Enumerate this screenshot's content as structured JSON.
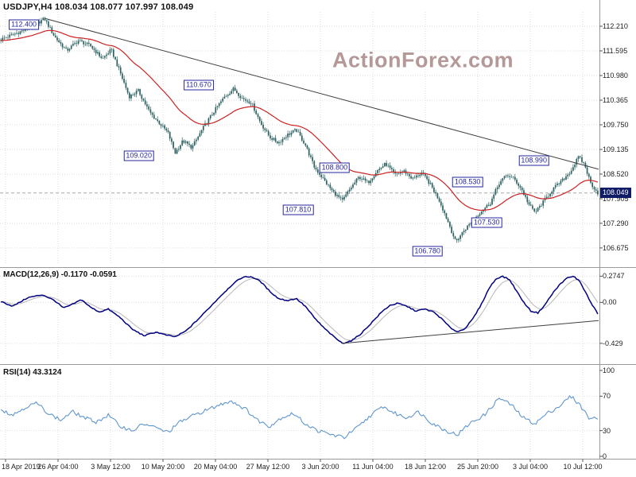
{
  "header": {
    "title": "USDJPY,H4 108.034 108.077 107.997 108.049"
  },
  "watermark": {
    "text": "ActionForex.com"
  },
  "colors": {
    "candle": "#2c6060",
    "ma_line": "#cc2222",
    "macd_line": "#000080",
    "macd_signal": "#b8b8b8",
    "rsi_line": "#5f97cf",
    "grid": "#dedede",
    "trendline": "#3f3f3f",
    "annotation": "#26269c",
    "price_marker_bg": "#101c66",
    "watermark_color": "#b29494"
  },
  "x_axis": {
    "tick_labels": [
      "18 Apr 2019",
      "26 Apr 04:00",
      "3 May 12:00",
      "10 May 20:00",
      "20 May 04:00",
      "27 May 12:00",
      "3 Jun 20:00",
      "11 Jun 04:00",
      "18 Jun 12:00",
      "25 Jun 20:00",
      "3 Jul 04:00",
      "10 Jul 12:00"
    ]
  },
  "chart_data": [
    {
      "type": "candlestick",
      "symbol": "USDJPY",
      "timeframe": "H4",
      "ohlc": {
        "open": 108.034,
        "high": 108.077,
        "low": 107.997,
        "close": 108.049
      },
      "current_price": "108.049",
      "y_axis_labels": [
        "112.210",
        "111.595",
        "110.980",
        "110.365",
        "109.750",
        "109.135",
        "108.520",
        "107.905",
        "107.290",
        "106.675"
      ],
      "y_range": [
        106.277,
        112.567
      ],
      "candle_count": 340,
      "ma_period": 40,
      "price_keypoints": [
        [
          0,
          111.88
        ],
        [
          0.02,
          112.0
        ],
        [
          0.05,
          112.18
        ],
        [
          0.073,
          112.4
        ],
        [
          0.09,
          111.95
        ],
        [
          0.11,
          111.6
        ],
        [
          0.13,
          111.85
        ],
        [
          0.15,
          111.72
        ],
        [
          0.17,
          111.4
        ],
        [
          0.185,
          111.62
        ],
        [
          0.2,
          111.05
        ],
        [
          0.215,
          110.45
        ],
        [
          0.23,
          110.6
        ],
        [
          0.25,
          110.05
        ],
        [
          0.265,
          109.8
        ],
        [
          0.28,
          109.55
        ],
        [
          0.292,
          109.05
        ],
        [
          0.305,
          109.35
        ],
        [
          0.32,
          109.18
        ],
        [
          0.34,
          109.7
        ],
        [
          0.36,
          110.15
        ],
        [
          0.375,
          110.45
        ],
        [
          0.39,
          110.65
        ],
        [
          0.405,
          110.4
        ],
        [
          0.42,
          110.3
        ],
        [
          0.435,
          109.8
        ],
        [
          0.45,
          109.45
        ],
        [
          0.465,
          109.3
        ],
        [
          0.48,
          109.5
        ],
        [
          0.495,
          109.62
        ],
        [
          0.51,
          109.25
        ],
        [
          0.525,
          108.7
        ],
        [
          0.54,
          108.4
        ],
        [
          0.555,
          108.1
        ],
        [
          0.572,
          107.85
        ],
        [
          0.585,
          108.15
        ],
        [
          0.6,
          108.45
        ],
        [
          0.615,
          108.3
        ],
        [
          0.63,
          108.6
        ],
        [
          0.645,
          108.78
        ],
        [
          0.66,
          108.5
        ],
        [
          0.675,
          108.6
        ],
        [
          0.69,
          108.4
        ],
        [
          0.705,
          108.55
        ],
        [
          0.72,
          108.25
        ],
        [
          0.735,
          107.85
        ],
        [
          0.75,
          107.3
        ],
        [
          0.762,
          106.82
        ],
        [
          0.775,
          107.1
        ],
        [
          0.79,
          107.35
        ],
        [
          0.805,
          107.6
        ],
        [
          0.82,
          107.8
        ],
        [
          0.835,
          108.3
        ],
        [
          0.848,
          108.5
        ],
        [
          0.86,
          108.4
        ],
        [
          0.872,
          108.15
        ],
        [
          0.885,
          107.75
        ],
        [
          0.895,
          107.56
        ],
        [
          0.91,
          107.85
        ],
        [
          0.925,
          108.15
        ],
        [
          0.94,
          108.35
        ],
        [
          0.955,
          108.6
        ],
        [
          0.968,
          108.95
        ],
        [
          0.978,
          108.75
        ],
        [
          0.988,
          108.3
        ],
        [
          1,
          108.05
        ]
      ],
      "trendline": [
        [
          0.076,
          112.4
        ],
        [
          1.0,
          108.64
        ]
      ],
      "annotations": [
        {
          "label": "112.400",
          "t": 0.04,
          "p": 112.25
        },
        {
          "label": "110.670",
          "t": 0.332,
          "p": 110.74
        },
        {
          "label": "109.020",
          "t": 0.232,
          "p": 108.97
        },
        {
          "label": "108.800",
          "t": 0.559,
          "p": 108.67
        },
        {
          "label": "107.810",
          "t": 0.498,
          "p": 107.62
        },
        {
          "label": "108.530",
          "t": 0.781,
          "p": 108.33
        },
        {
          "label": "107.530",
          "t": 0.813,
          "p": 107.3
        },
        {
          "label": "106.780",
          "t": 0.714,
          "p": 106.6
        },
        {
          "label": "108.990",
          "t": 0.892,
          "p": 108.85
        }
      ]
    },
    {
      "type": "line",
      "name": "MACD",
      "label": "MACD(12,26,9) -0.1170 -0.0591",
      "values_display": [
        "-0.1170",
        "-0.0591"
      ],
      "y_axis_labels": [
        "0.2747",
        "0.00",
        "-0.429"
      ],
      "y_axis_values": [
        0.2747,
        0,
        -0.429
      ],
      "y_range": [
        -0.605,
        0.345
      ],
      "keypoints": [
        [
          0,
          0.01
        ],
        [
          0.02,
          -0.04
        ],
        [
          0.045,
          0.05
        ],
        [
          0.07,
          0.08
        ],
        [
          0.09,
          0.02
        ],
        [
          0.105,
          -0.06
        ],
        [
          0.12,
          -0.02
        ],
        [
          0.135,
          0.03
        ],
        [
          0.15,
          -0.05
        ],
        [
          0.165,
          -0.1
        ],
        [
          0.18,
          -0.07
        ],
        [
          0.2,
          -0.16
        ],
        [
          0.22,
          -0.28
        ],
        [
          0.24,
          -0.35
        ],
        [
          0.26,
          -0.31
        ],
        [
          0.275,
          -0.34
        ],
        [
          0.292,
          -0.36
        ],
        [
          0.31,
          -0.3
        ],
        [
          0.33,
          -0.18
        ],
        [
          0.35,
          -0.05
        ],
        [
          0.37,
          0.08
        ],
        [
          0.39,
          0.2
        ],
        [
          0.405,
          0.265
        ],
        [
          0.42,
          0.27
        ],
        [
          0.435,
          0.22
        ],
        [
          0.45,
          0.12
        ],
        [
          0.465,
          0.04
        ],
        [
          0.48,
          0.02
        ],
        [
          0.495,
          0.04
        ],
        [
          0.51,
          -0.04
        ],
        [
          0.525,
          -0.16
        ],
        [
          0.54,
          -0.26
        ],
        [
          0.556,
          -0.35
        ],
        [
          0.572,
          -0.429
        ],
        [
          0.588,
          -0.4
        ],
        [
          0.603,
          -0.33
        ],
        [
          0.62,
          -0.22
        ],
        [
          0.638,
          -0.1
        ],
        [
          0.652,
          -0.03
        ],
        [
          0.665,
          -0.01
        ],
        [
          0.68,
          -0.04
        ],
        [
          0.695,
          -0.09
        ],
        [
          0.71,
          -0.07
        ],
        [
          0.725,
          -0.1
        ],
        [
          0.74,
          -0.18
        ],
        [
          0.752,
          -0.26
        ],
        [
          0.765,
          -0.31
        ],
        [
          0.778,
          -0.27
        ],
        [
          0.79,
          -0.18
        ],
        [
          0.805,
          -0.02
        ],
        [
          0.818,
          0.15
        ],
        [
          0.83,
          0.25
        ],
        [
          0.84,
          0.274
        ],
        [
          0.852,
          0.24
        ],
        [
          0.864,
          0.12
        ],
        [
          0.876,
          0.0
        ],
        [
          0.888,
          -0.09
        ],
        [
          0.9,
          -0.11
        ],
        [
          0.912,
          -0.02
        ],
        [
          0.925,
          0.1
        ],
        [
          0.938,
          0.2
        ],
        [
          0.95,
          0.26
        ],
        [
          0.96,
          0.272
        ],
        [
          0.97,
          0.22
        ],
        [
          0.98,
          0.1
        ],
        [
          0.99,
          -0.02
        ],
        [
          1,
          -0.117
        ]
      ],
      "trendline": [
        [
          0.572,
          -0.429
        ],
        [
          1.0,
          -0.19
        ]
      ]
    },
    {
      "type": "line",
      "name": "RSI",
      "label": "RSI(14) 43.3124",
      "value_display": "43.3124",
      "y_axis_labels": [
        "100",
        "70",
        "30",
        "0"
      ],
      "levels": [
        70,
        30
      ],
      "y_range": [
        -1.85,
        103.7
      ],
      "keypoints": [
        [
          0,
          55
        ],
        [
          0.02,
          48
        ],
        [
          0.04,
          57
        ],
        [
          0.06,
          62
        ],
        [
          0.08,
          50
        ],
        [
          0.1,
          42
        ],
        [
          0.12,
          52
        ],
        [
          0.14,
          45
        ],
        [
          0.16,
          40
        ],
        [
          0.18,
          48
        ],
        [
          0.2,
          35
        ],
        [
          0.22,
          30
        ],
        [
          0.24,
          38
        ],
        [
          0.26,
          33
        ],
        [
          0.28,
          28
        ],
        [
          0.3,
          40
        ],
        [
          0.33,
          50
        ],
        [
          0.36,
          58
        ],
        [
          0.385,
          65
        ],
        [
          0.41,
          55
        ],
        [
          0.43,
          42
        ],
        [
          0.45,
          35
        ],
        [
          0.47,
          45
        ],
        [
          0.49,
          50
        ],
        [
          0.51,
          38
        ],
        [
          0.53,
          30
        ],
        [
          0.555,
          25
        ],
        [
          0.575,
          22
        ],
        [
          0.6,
          35
        ],
        [
          0.62,
          48
        ],
        [
          0.64,
          58
        ],
        [
          0.66,
          50
        ],
        [
          0.68,
          45
        ],
        [
          0.7,
          52
        ],
        [
          0.72,
          40
        ],
        [
          0.745,
          30
        ],
        [
          0.765,
          25
        ],
        [
          0.785,
          38
        ],
        [
          0.81,
          48
        ],
        [
          0.835,
          68
        ],
        [
          0.855,
          60
        ],
        [
          0.875,
          45
        ],
        [
          0.895,
          38
        ],
        [
          0.915,
          50
        ],
        [
          0.935,
          58
        ],
        [
          0.955,
          70
        ],
        [
          0.97,
          60
        ],
        [
          0.985,
          45
        ],
        [
          1,
          43.31
        ]
      ]
    }
  ]
}
